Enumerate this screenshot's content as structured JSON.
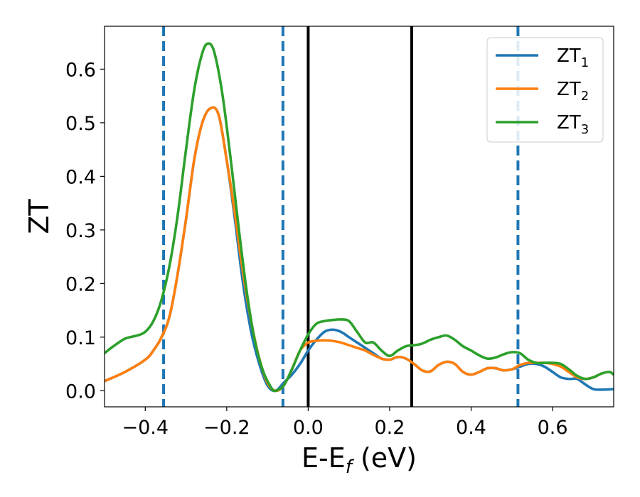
{
  "chart_data": {
    "type": "line",
    "title": "",
    "xlabel_main": "E-E",
    "xlabel_sub": "f",
    "xlabel_unit": " (eV)",
    "ylabel": "ZT",
    "xlim": [
      -0.5,
      0.75
    ],
    "ylim": [
      -0.03,
      0.68
    ],
    "x_ticks": [
      -0.4,
      -0.2,
      0.0,
      0.2,
      0.4,
      0.6
    ],
    "x_tick_labels": [
      "−0.4",
      "−0.2",
      "0.0",
      "0.2",
      "0.4",
      "0.6"
    ],
    "y_ticks": [
      0.0,
      0.1,
      0.2,
      0.3,
      0.4,
      0.5,
      0.6
    ],
    "y_tick_labels": [
      "0.0",
      "0.1",
      "0.2",
      "0.3",
      "0.4",
      "0.5",
      "0.6"
    ],
    "grid": false,
    "legend_position": "top-right",
    "vlines_dashed": [
      -0.355,
      -0.062,
      0.515
    ],
    "vlines_solid": [
      0.0,
      0.254
    ],
    "series": [
      {
        "name": "ZT",
        "name_sub": "1",
        "color": "#1f77b4",
        "points": [
          [
            -0.5,
            0.018
          ],
          [
            -0.45,
            0.035
          ],
          [
            -0.4,
            0.058
          ],
          [
            -0.38,
            0.075
          ],
          [
            -0.36,
            0.1
          ],
          [
            -0.34,
            0.14
          ],
          [
            -0.32,
            0.22
          ],
          [
            -0.3,
            0.32
          ],
          [
            -0.28,
            0.43
          ],
          [
            -0.26,
            0.5
          ],
          [
            -0.24,
            0.527
          ],
          [
            -0.22,
            0.515
          ],
          [
            -0.2,
            0.43
          ],
          [
            -0.18,
            0.32
          ],
          [
            -0.16,
            0.2
          ],
          [
            -0.14,
            0.11
          ],
          [
            -0.12,
            0.05
          ],
          [
            -0.1,
            0.01
          ],
          [
            -0.08,
            0.0
          ],
          [
            -0.06,
            0.015
          ],
          [
            -0.04,
            0.03
          ],
          [
            -0.02,
            0.05
          ],
          [
            0.0,
            0.075
          ],
          [
            0.02,
            0.095
          ],
          [
            0.04,
            0.11
          ],
          [
            0.06,
            0.114
          ],
          [
            0.08,
            0.11
          ],
          [
            0.1,
            0.1
          ],
          [
            0.12,
            0.09
          ],
          [
            0.14,
            0.08
          ],
          [
            0.16,
            0.07
          ],
          [
            0.18,
            0.06
          ],
          [
            0.2,
            0.058
          ],
          [
            0.22,
            0.063
          ],
          [
            0.24,
            0.06
          ],
          [
            0.26,
            0.05
          ],
          [
            0.28,
            0.038
          ],
          [
            0.3,
            0.036
          ],
          [
            0.32,
            0.048
          ],
          [
            0.34,
            0.054
          ],
          [
            0.36,
            0.05
          ],
          [
            0.38,
            0.035
          ],
          [
            0.4,
            0.03
          ],
          [
            0.42,
            0.035
          ],
          [
            0.44,
            0.042
          ],
          [
            0.46,
            0.042
          ],
          [
            0.48,
            0.038
          ],
          [
            0.5,
            0.04
          ],
          [
            0.52,
            0.045
          ],
          [
            0.54,
            0.05
          ],
          [
            0.56,
            0.05
          ],
          [
            0.58,
            0.045
          ],
          [
            0.6,
            0.035
          ],
          [
            0.62,
            0.025
          ],
          [
            0.64,
            0.022
          ],
          [
            0.66,
            0.022
          ],
          [
            0.68,
            0.012
          ],
          [
            0.7,
            0.003
          ],
          [
            0.72,
            0.002
          ],
          [
            0.75,
            0.003
          ]
        ]
      },
      {
        "name": "ZT",
        "name_sub": "2",
        "color": "#ff7f0e",
        "points": [
          [
            -0.5,
            0.018
          ],
          [
            -0.45,
            0.035
          ],
          [
            -0.4,
            0.058
          ],
          [
            -0.38,
            0.075
          ],
          [
            -0.36,
            0.1
          ],
          [
            -0.34,
            0.14
          ],
          [
            -0.32,
            0.22
          ],
          [
            -0.3,
            0.32
          ],
          [
            -0.28,
            0.43
          ],
          [
            -0.26,
            0.5
          ],
          [
            -0.24,
            0.527
          ],
          [
            -0.22,
            0.515
          ],
          [
            -0.2,
            0.43
          ],
          [
            -0.18,
            0.33
          ],
          [
            -0.16,
            0.22
          ],
          [
            -0.14,
            0.13
          ],
          [
            -0.12,
            0.06
          ],
          [
            -0.1,
            0.015
          ],
          [
            -0.08,
            0.0
          ],
          [
            -0.06,
            0.01
          ],
          [
            -0.04,
            0.04
          ],
          [
            -0.02,
            0.075
          ],
          [
            0.0,
            0.09
          ],
          [
            0.02,
            0.093
          ],
          [
            0.04,
            0.094
          ],
          [
            0.06,
            0.093
          ],
          [
            0.08,
            0.09
          ],
          [
            0.1,
            0.085
          ],
          [
            0.12,
            0.08
          ],
          [
            0.14,
            0.075
          ],
          [
            0.16,
            0.067
          ],
          [
            0.18,
            0.06
          ],
          [
            0.2,
            0.058
          ],
          [
            0.22,
            0.063
          ],
          [
            0.24,
            0.06
          ],
          [
            0.26,
            0.05
          ],
          [
            0.28,
            0.038
          ],
          [
            0.3,
            0.036
          ],
          [
            0.32,
            0.048
          ],
          [
            0.34,
            0.054
          ],
          [
            0.36,
            0.05
          ],
          [
            0.38,
            0.035
          ],
          [
            0.4,
            0.03
          ],
          [
            0.42,
            0.035
          ],
          [
            0.44,
            0.042
          ],
          [
            0.46,
            0.042
          ],
          [
            0.48,
            0.038
          ],
          [
            0.5,
            0.04
          ],
          [
            0.52,
            0.048
          ],
          [
            0.54,
            0.052
          ],
          [
            0.56,
            0.052
          ],
          [
            0.58,
            0.052
          ],
          [
            0.6,
            0.05
          ],
          [
            0.62,
            0.045
          ],
          [
            0.64,
            0.035
          ],
          [
            0.66,
            0.025
          ],
          [
            0.68,
            0.022
          ],
          [
            0.7,
            0.025
          ],
          [
            0.72,
            0.032
          ],
          [
            0.74,
            0.035
          ],
          [
            0.75,
            0.03
          ]
        ]
      },
      {
        "name": "ZT",
        "name_sub": "3",
        "color": "#2ca02c",
        "points": [
          [
            -0.5,
            0.07
          ],
          [
            -0.48,
            0.082
          ],
          [
            -0.45,
            0.097
          ],
          [
            -0.42,
            0.103
          ],
          [
            -0.4,
            0.11
          ],
          [
            -0.38,
            0.13
          ],
          [
            -0.36,
            0.17
          ],
          [
            -0.34,
            0.235
          ],
          [
            -0.32,
            0.33
          ],
          [
            -0.3,
            0.45
          ],
          [
            -0.28,
            0.56
          ],
          [
            -0.26,
            0.63
          ],
          [
            -0.245,
            0.648
          ],
          [
            -0.23,
            0.63
          ],
          [
            -0.21,
            0.55
          ],
          [
            -0.19,
            0.43
          ],
          [
            -0.17,
            0.3
          ],
          [
            -0.15,
            0.18
          ],
          [
            -0.13,
            0.09
          ],
          [
            -0.11,
            0.035
          ],
          [
            -0.09,
            0.005
          ],
          [
            -0.08,
            0.0
          ],
          [
            -0.06,
            0.01
          ],
          [
            -0.04,
            0.04
          ],
          [
            -0.02,
            0.075
          ],
          [
            0.0,
            0.105
          ],
          [
            0.02,
            0.125
          ],
          [
            0.04,
            0.13
          ],
          [
            0.06,
            0.132
          ],
          [
            0.08,
            0.133
          ],
          [
            0.1,
            0.13
          ],
          [
            0.12,
            0.11
          ],
          [
            0.14,
            0.09
          ],
          [
            0.16,
            0.09
          ],
          [
            0.18,
            0.075
          ],
          [
            0.2,
            0.065
          ],
          [
            0.22,
            0.075
          ],
          [
            0.24,
            0.083
          ],
          [
            0.26,
            0.085
          ],
          [
            0.28,
            0.088
          ],
          [
            0.3,
            0.095
          ],
          [
            0.32,
            0.1
          ],
          [
            0.34,
            0.103
          ],
          [
            0.36,
            0.095
          ],
          [
            0.38,
            0.083
          ],
          [
            0.4,
            0.075
          ],
          [
            0.42,
            0.066
          ],
          [
            0.44,
            0.06
          ],
          [
            0.46,
            0.062
          ],
          [
            0.48,
            0.068
          ],
          [
            0.5,
            0.072
          ],
          [
            0.52,
            0.07
          ],
          [
            0.54,
            0.058
          ],
          [
            0.56,
            0.052
          ],
          [
            0.58,
            0.052
          ],
          [
            0.6,
            0.052
          ],
          [
            0.62,
            0.05
          ],
          [
            0.64,
            0.04
          ],
          [
            0.66,
            0.028
          ],
          [
            0.68,
            0.022
          ],
          [
            0.7,
            0.025
          ],
          [
            0.72,
            0.032
          ],
          [
            0.74,
            0.035
          ],
          [
            0.75,
            0.03
          ]
        ]
      }
    ]
  }
}
